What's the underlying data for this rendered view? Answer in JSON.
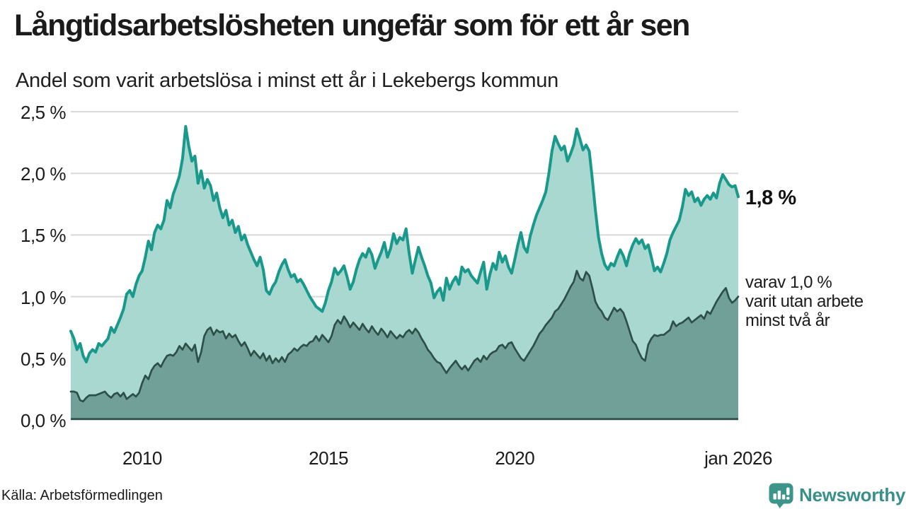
{
  "chart_data": {
    "type": "area",
    "title": "Långtidsarbetslösheten ungefär som för ett år sen",
    "subtitle": "Andel som varit arbetslösa i minst ett år i Lekebergs kommun",
    "x_start": 2008.083,
    "x_step": 0.08333,
    "x_unit": "decimal year, monthly points, 2008-02 to 2026-01",
    "ylim": [
      0,
      2.5
    ],
    "grid": "horizontal",
    "colors": {
      "grid": "#d9d9d9",
      "text": "#1b1b1b",
      "brand_teal": "#39908a"
    },
    "y_ticks": [
      {
        "value": 2.5,
        "label": "2,5 %"
      },
      {
        "value": 2.0,
        "label": "2,0 %"
      },
      {
        "value": 1.5,
        "label": "1,5 %"
      },
      {
        "value": 1.0,
        "label": "1,0 %"
      },
      {
        "value": 0.5,
        "label": "0,5 %"
      },
      {
        "value": 0.0,
        "label": "0,0 %"
      }
    ],
    "x_ticks": [
      {
        "value": 2010,
        "label": "2010"
      },
      {
        "value": 2015,
        "label": "2015"
      },
      {
        "value": 2020,
        "label": "2020"
      },
      {
        "value": 2026,
        "label": "jan 2026"
      }
    ],
    "series": [
      {
        "name": "Andel arbetslösa minst ett år",
        "line_color": "#18998b",
        "fill_color": "#a8d8cf",
        "line_width": 4,
        "end_value_label": "1,8 %",
        "values": [
          0.72,
          0.66,
          0.57,
          0.62,
          0.52,
          0.47,
          0.54,
          0.57,
          0.55,
          0.62,
          0.6,
          0.63,
          0.66,
          0.75,
          0.71,
          0.77,
          0.83,
          0.9,
          1.02,
          1.05,
          1.0,
          1.1,
          1.17,
          1.21,
          1.32,
          1.45,
          1.38,
          1.52,
          1.58,
          1.55,
          1.62,
          1.78,
          1.72,
          1.83,
          1.9,
          1.98,
          2.12,
          2.38,
          2.22,
          2.1,
          2.14,
          1.92,
          2.02,
          1.88,
          1.95,
          1.9,
          1.78,
          1.84,
          1.72,
          1.64,
          1.7,
          1.58,
          1.62,
          1.52,
          1.57,
          1.46,
          1.5,
          1.42,
          1.36,
          1.3,
          1.25,
          1.32,
          1.22,
          1.05,
          1.02,
          1.08,
          1.12,
          1.2,
          1.26,
          1.3,
          1.22,
          1.16,
          1.18,
          1.12,
          1.14,
          1.1,
          1.05,
          1.0,
          0.96,
          0.92,
          0.9,
          0.88,
          0.95,
          1.05,
          1.12,
          1.23,
          1.18,
          1.21,
          1.25,
          1.16,
          1.06,
          1.12,
          1.22,
          1.3,
          1.35,
          1.32,
          1.39,
          1.34,
          1.23,
          1.3,
          1.36,
          1.44,
          1.32,
          1.39,
          1.51,
          1.43,
          1.48,
          1.46,
          1.55,
          1.35,
          1.19,
          1.3,
          1.4,
          1.32,
          1.25,
          1.17,
          1.11,
          0.99,
          1.04,
          1.07,
          0.97,
          1.15,
          1.06,
          1.12,
          1.16,
          1.1,
          1.24,
          1.2,
          1.22,
          1.17,
          1.14,
          1.11,
          1.2,
          1.28,
          1.06,
          1.18,
          1.27,
          1.22,
          1.36,
          1.28,
          1.33,
          1.24,
          1.19,
          1.3,
          1.42,
          1.52,
          1.4,
          1.36,
          1.49,
          1.58,
          1.66,
          1.72,
          1.78,
          1.85,
          2.0,
          2.18,
          2.3,
          2.24,
          2.19,
          2.22,
          2.1,
          2.16,
          2.23,
          2.36,
          2.28,
          2.19,
          2.23,
          2.18,
          1.95,
          1.7,
          1.48,
          1.35,
          1.26,
          1.22,
          1.27,
          1.25,
          1.32,
          1.38,
          1.33,
          1.25,
          1.35,
          1.42,
          1.47,
          1.43,
          1.46,
          1.39,
          1.42,
          1.32,
          1.21,
          1.24,
          1.2,
          1.27,
          1.35,
          1.46,
          1.52,
          1.57,
          1.62,
          1.73,
          1.87,
          1.82,
          1.85,
          1.77,
          1.8,
          1.74,
          1.79,
          1.82,
          1.79,
          1.84,
          1.8,
          1.92,
          1.99,
          1.95,
          1.91,
          1.89,
          1.9,
          1.81
        ]
      },
      {
        "name": "varav utan arbete minst två år",
        "line_color": "#2d4f49",
        "fill_color": "#71a098",
        "line_width": 2.7,
        "end_value_label": "varav 1,0 % varit utan arbete minst två år",
        "values": [
          0.23,
          0.23,
          0.22,
          0.16,
          0.15,
          0.18,
          0.2,
          0.2,
          0.2,
          0.21,
          0.22,
          0.23,
          0.2,
          0.18,
          0.21,
          0.22,
          0.19,
          0.22,
          0.17,
          0.19,
          0.21,
          0.19,
          0.22,
          0.3,
          0.36,
          0.33,
          0.4,
          0.44,
          0.46,
          0.43,
          0.48,
          0.52,
          0.53,
          0.52,
          0.55,
          0.6,
          0.57,
          0.62,
          0.59,
          0.56,
          0.61,
          0.47,
          0.55,
          0.68,
          0.73,
          0.75,
          0.69,
          0.73,
          0.71,
          0.72,
          0.66,
          0.7,
          0.67,
          0.69,
          0.64,
          0.6,
          0.63,
          0.58,
          0.52,
          0.56,
          0.53,
          0.5,
          0.54,
          0.48,
          0.52,
          0.46,
          0.5,
          0.47,
          0.51,
          0.47,
          0.53,
          0.55,
          0.58,
          0.56,
          0.59,
          0.61,
          0.6,
          0.63,
          0.64,
          0.68,
          0.64,
          0.69,
          0.66,
          0.63,
          0.68,
          0.77,
          0.81,
          0.78,
          0.84,
          0.8,
          0.75,
          0.79,
          0.76,
          0.73,
          0.78,
          0.74,
          0.71,
          0.76,
          0.72,
          0.69,
          0.74,
          0.71,
          0.67,
          0.72,
          0.69,
          0.66,
          0.69,
          0.67,
          0.71,
          0.73,
          0.7,
          0.74,
          0.71,
          0.66,
          0.62,
          0.57,
          0.54,
          0.5,
          0.47,
          0.46,
          0.42,
          0.38,
          0.42,
          0.45,
          0.48,
          0.44,
          0.41,
          0.44,
          0.4,
          0.44,
          0.48,
          0.5,
          0.47,
          0.52,
          0.49,
          0.53,
          0.55,
          0.56,
          0.6,
          0.61,
          0.58,
          0.62,
          0.63,
          0.58,
          0.54,
          0.5,
          0.48,
          0.52,
          0.56,
          0.6,
          0.65,
          0.7,
          0.73,
          0.77,
          0.8,
          0.83,
          0.88,
          0.9,
          0.94,
          0.98,
          1.03,
          1.08,
          1.12,
          1.21,
          1.15,
          1.13,
          1.2,
          1.17,
          1.07,
          0.96,
          0.91,
          0.88,
          0.83,
          0.81,
          0.86,
          0.91,
          0.88,
          0.9,
          0.87,
          0.8,
          0.72,
          0.64,
          0.61,
          0.55,
          0.5,
          0.48,
          0.61,
          0.66,
          0.69,
          0.68,
          0.69,
          0.69,
          0.71,
          0.73,
          0.8,
          0.76,
          0.78,
          0.79,
          0.81,
          0.83,
          0.79,
          0.81,
          0.83,
          0.85,
          0.82,
          0.88,
          0.86,
          0.91,
          0.96,
          1.0,
          1.04,
          1.07,
          0.99,
          0.95,
          0.97,
          1.0
        ]
      }
    ],
    "annotations": {
      "total_label": "1,8 %",
      "sub_label_lines": [
        "varav 1,0 %",
        "varit utan arbete",
        "minst två år"
      ]
    }
  },
  "footer": {
    "source": "Källa: Arbetsförmedlingen",
    "brand": "Newsworthy"
  }
}
